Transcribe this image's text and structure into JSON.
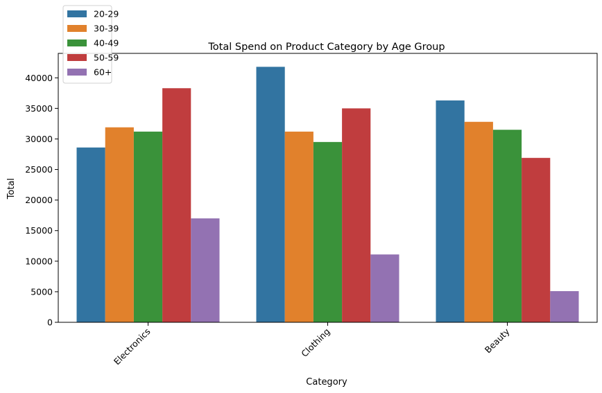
{
  "chart_data": {
    "type": "bar",
    "title": "Total Spend on Product Category by Age Group",
    "xlabel": "Category",
    "ylabel": "Total",
    "categories": [
      "Electronics",
      "Clothing",
      "Beauty"
    ],
    "ylim": [
      0,
      44000
    ],
    "yticks": [
      0,
      5000,
      10000,
      15000,
      20000,
      25000,
      30000,
      35000,
      40000
    ],
    "series": [
      {
        "name": "20-29",
        "color": "#3274a1",
        "values": [
          28600,
          41800,
          36300
        ]
      },
      {
        "name": "30-39",
        "color": "#e1812c",
        "values": [
          31900,
          31200,
          32800
        ]
      },
      {
        "name": "40-49",
        "color": "#3a923a",
        "values": [
          31200,
          29500,
          31500
        ]
      },
      {
        "name": "50-59",
        "color": "#c03d3e",
        "values": [
          38300,
          35000,
          26900
        ]
      },
      {
        "name": "60+",
        "color": "#9372b2",
        "values": [
          17000,
          11100,
          5100
        ]
      }
    ],
    "legend_position": "top-left (outside axes)",
    "grid": false,
    "xtick_rotation": 45
  }
}
